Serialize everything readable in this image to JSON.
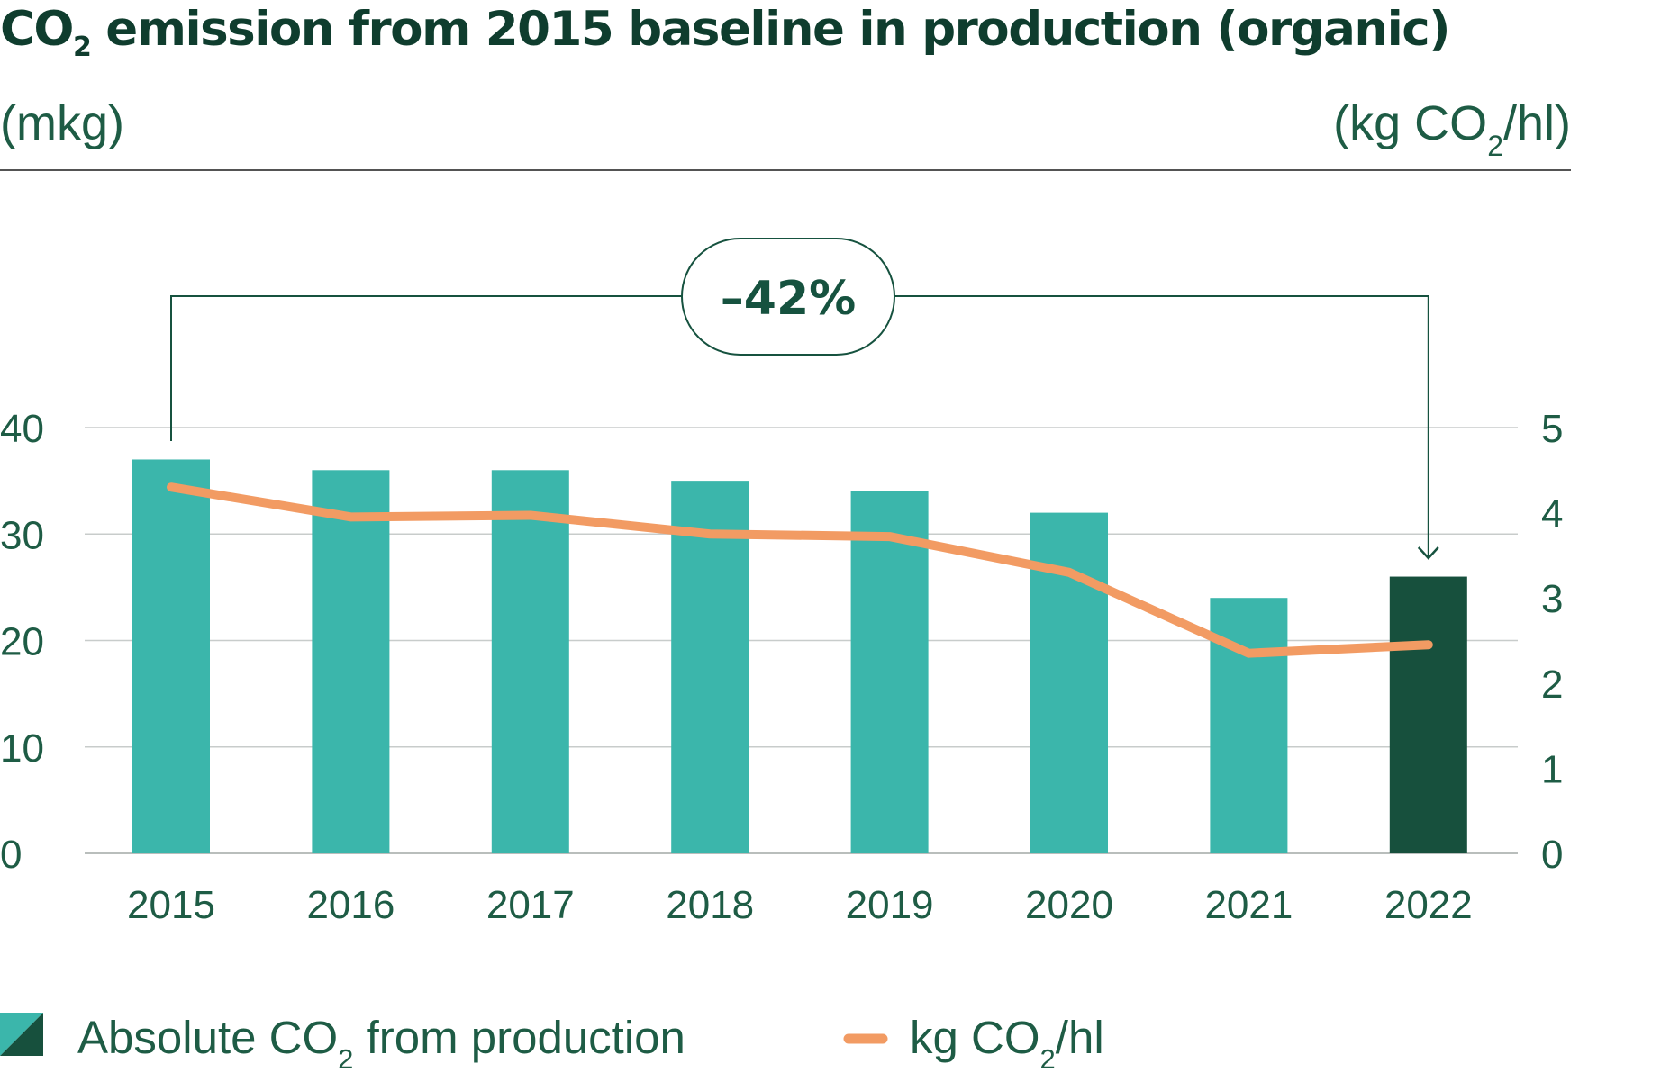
{
  "title": {
    "pre": "CO",
    "sub": "2",
    "post": " emission from 2015 baseline in production (organic)"
  },
  "left_unit": "(mkg)",
  "right_unit": {
    "pre": "(kg CO",
    "sub": "2",
    "post": "/hl)"
  },
  "annotation": "–42%",
  "colors": {
    "bar": "#3bb6ab",
    "bar_highlight": "#17503d",
    "line": "#f29b63",
    "text": "#1e5c45",
    "grid": "#c8cccb"
  },
  "chart_data": {
    "type": "bar",
    "categories": [
      "2015",
      "2016",
      "2017",
      "2018",
      "2019",
      "2020",
      "2021",
      "2022"
    ],
    "series": [
      {
        "name": "Absolute CO2 from production",
        "axis": "left",
        "values": [
          37,
          36,
          36,
          35,
          34,
          32,
          24,
          26
        ],
        "highlight_index": 7
      },
      {
        "name": "kg CO2/hl",
        "axis": "right",
        "type": "line",
        "values": [
          4.3,
          3.95,
          3.97,
          3.75,
          3.72,
          3.3,
          2.35,
          2.45
        ]
      }
    ],
    "y_left": {
      "ylim": [
        0,
        40
      ],
      "ticks": [
        "0",
        "10",
        "20",
        "30",
        "40"
      ]
    },
    "y_right": {
      "ylim": [
        0,
        5
      ],
      "ticks": [
        "0",
        "1",
        "2",
        "3",
        "4",
        "5"
      ]
    },
    "grid": true,
    "legend": [
      {
        "pre": "Absolute CO",
        "sub": "2",
        "post": " from production"
      },
      {
        "pre": "kg CO",
        "sub": "2",
        "post": "/hl"
      }
    ],
    "legend_position": "bottom-left"
  }
}
